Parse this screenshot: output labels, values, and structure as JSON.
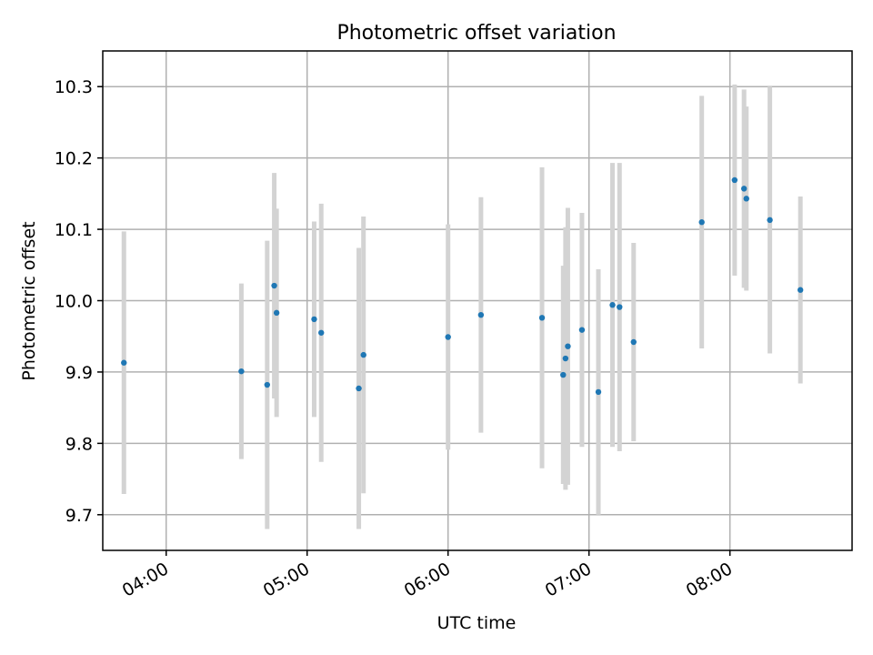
{
  "chart_data": {
    "type": "scatter",
    "title": "Photometric offset variation",
    "xlabel": "UTC time",
    "ylabel": "Photometric offset",
    "x_axis": "time",
    "xlim": [
      "03:33",
      "08:52"
    ],
    "ylim": [
      9.65,
      10.35
    ],
    "xticks": [
      "04:00",
      "05:00",
      "06:00",
      "07:00",
      "08:00"
    ],
    "yticks": [
      9.7,
      9.8,
      9.9,
      10.0,
      10.1,
      10.2,
      10.3
    ],
    "ytick_labels": [
      "9.7",
      "9.8",
      "9.9",
      "10.0",
      "10.1",
      "10.2",
      "10.3"
    ],
    "grid": true,
    "errorbar_color": "#d3d3d3",
    "marker_color": "#1f77b4",
    "points": [
      {
        "x": "03:42",
        "y": 9.913,
        "err": 0.184
      },
      {
        "x": "04:32",
        "y": 9.901,
        "err": 0.123
      },
      {
        "x": "04:43",
        "y": 9.882,
        "err": 0.202
      },
      {
        "x": "04:46",
        "y": 10.021,
        "err": 0.158
      },
      {
        "x": "04:47",
        "y": 9.983,
        "err": 0.146
      },
      {
        "x": "05:03",
        "y": 9.974,
        "err": 0.137
      },
      {
        "x": "05:06",
        "y": 9.955,
        "err": 0.181
      },
      {
        "x": "05:22",
        "y": 9.877,
        "err": 0.197
      },
      {
        "x": "05:24",
        "y": 9.924,
        "err": 0.194
      },
      {
        "x": "06:00",
        "y": 9.949,
        "err": 0.158
      },
      {
        "x": "06:14",
        "y": 9.98,
        "err": 0.165
      },
      {
        "x": "06:40",
        "y": 9.976,
        "err": 0.211
      },
      {
        "x": "06:49",
        "y": 9.896,
        "err": 0.153
      },
      {
        "x": "06:50",
        "y": 9.919,
        "err": 0.184
      },
      {
        "x": "06:51",
        "y": 9.936,
        "err": 0.194
      },
      {
        "x": "06:57",
        "y": 9.959,
        "err": 0.164
      },
      {
        "x": "07:04",
        "y": 9.872,
        "err": 0.172
      },
      {
        "x": "07:10",
        "y": 9.994,
        "err": 0.199
      },
      {
        "x": "07:13",
        "y": 9.991,
        "err": 0.202
      },
      {
        "x": "07:19",
        "y": 9.942,
        "err": 0.139
      },
      {
        "x": "07:48",
        "y": 10.11,
        "err": 0.177
      },
      {
        "x": "08:02",
        "y": 10.169,
        "err": 0.134
      },
      {
        "x": "08:06",
        "y": 10.157,
        "err": 0.139
      },
      {
        "x": "08:07",
        "y": 10.143,
        "err": 0.129
      },
      {
        "x": "08:17",
        "y": 10.113,
        "err": 0.187
      },
      {
        "x": "08:30",
        "y": 10.015,
        "err": 0.131
      }
    ]
  }
}
